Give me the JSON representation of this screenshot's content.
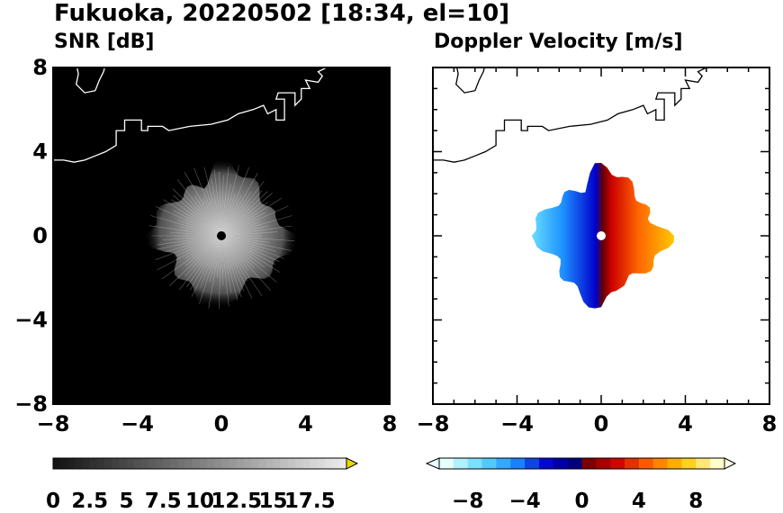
{
  "title": "Fukuoka, 20220502 [18:34, el=10]",
  "colors": {
    "snr_background": "#000000",
    "snr_echo": "#bdbdbd",
    "radar_site": "#000000",
    "coast_snr": "#ffffff",
    "coast_doppler": "#000000",
    "velocity_negative": [
      "#e6ffff",
      "#66ddff",
      "#1e90ff",
      "#0000cc",
      "#000066"
    ],
    "velocity_positive": [
      "#660000",
      "#cc0000",
      "#ff6600",
      "#ffc800",
      "#ffffcc"
    ]
  },
  "chart_data": [
    {
      "type": "heatmap",
      "title": "SNR [dB]",
      "xlabel": "",
      "ylabel": "",
      "xlim": [
        -8,
        8
      ],
      "ylim": [
        -8,
        8
      ],
      "x_ticks": [
        "−8",
        "−4",
        "0",
        "4",
        "8"
      ],
      "y_ticks": [
        "−8",
        "−4",
        "0",
        "4",
        "8"
      ],
      "echo_extent": [
        -3.5,
        3.5
      ],
      "colorbar": {
        "range": [
          0,
          20
        ],
        "ticks": [
          "0",
          "2.5",
          "5",
          "7.5",
          "10",
          "12.5",
          "15",
          "17.5"
        ],
        "extend": "max"
      }
    },
    {
      "type": "heatmap",
      "title": "Doppler Velocity [m/s]",
      "xlabel": "",
      "ylabel": "",
      "xlim": [
        -8,
        8
      ],
      "ylim": [
        -8,
        8
      ],
      "x_ticks": [
        "−8",
        "−4",
        "0",
        "4",
        "8"
      ],
      "y_ticks": [],
      "echo_extent": [
        -3.3,
        3.3
      ],
      "colorbar": {
        "range": [
          -10,
          10
        ],
        "ticks": [
          "−8",
          "−4",
          "0",
          "4",
          "8"
        ],
        "extend": "both"
      }
    }
  ]
}
